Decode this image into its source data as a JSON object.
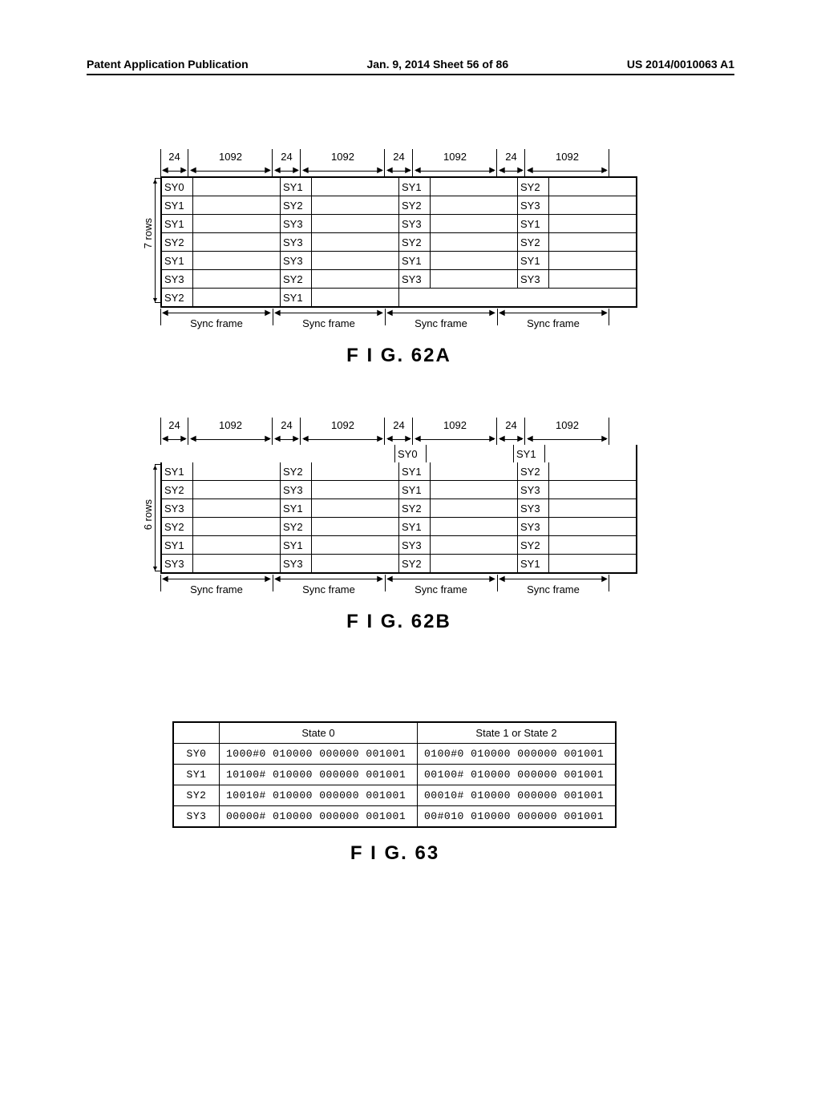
{
  "header": {
    "left": "Patent Application Publication",
    "center": "Jan. 9, 2014  Sheet 56 of 86",
    "right": "US 2014/0010063 A1"
  },
  "dims": {
    "narrow": "24",
    "wide": "1092"
  },
  "figA": {
    "rowsLabel": "7 rows",
    "caption": "F I G. 62A",
    "syncLabel": "Sync frame",
    "cells": [
      [
        "SY0",
        "",
        "SY1",
        "",
        "SY1",
        "",
        "SY2",
        ""
      ],
      [
        "SY1",
        "",
        "SY2",
        "",
        "SY2",
        "",
        "SY3",
        ""
      ],
      [
        "SY1",
        "",
        "SY3",
        "",
        "SY3",
        "",
        "SY1",
        ""
      ],
      [
        "SY2",
        "",
        "SY3",
        "",
        "SY2",
        "",
        "SY2",
        ""
      ],
      [
        "SY1",
        "",
        "SY3",
        "",
        "SY1",
        "",
        "SY1",
        ""
      ],
      [
        "SY3",
        "",
        "SY2",
        "",
        "SY3",
        "",
        "SY3",
        ""
      ],
      [
        "SY2",
        "",
        "SY1",
        "",
        "",
        "",
        "",
        ""
      ]
    ],
    "emptyCells": [
      [
        6,
        4
      ],
      [
        6,
        5
      ],
      [
        6,
        6
      ],
      [
        6,
        7
      ]
    ]
  },
  "figB": {
    "rowsLabel": "6 rows",
    "caption": "F I G. 62B",
    "syncLabel": "Sync frame",
    "preRow": [
      "",
      "",
      "",
      "",
      "SY0",
      "",
      "SY1",
      ""
    ],
    "cells": [
      [
        "SY1",
        "",
        "SY2",
        "",
        "SY1",
        "",
        "SY2",
        ""
      ],
      [
        "SY2",
        "",
        "SY3",
        "",
        "SY1",
        "",
        "SY3",
        ""
      ],
      [
        "SY3",
        "",
        "SY1",
        "",
        "SY2",
        "",
        "SY3",
        ""
      ],
      [
        "SY2",
        "",
        "SY2",
        "",
        "SY1",
        "",
        "SY3",
        ""
      ],
      [
        "SY1",
        "",
        "SY1",
        "",
        "SY3",
        "",
        "SY2",
        ""
      ],
      [
        "SY3",
        "",
        "SY3",
        "",
        "SY2",
        "",
        "SY1",
        ""
      ]
    ]
  },
  "figC": {
    "caption": "F I G. 63",
    "headers": [
      "",
      "State 0",
      "State 1 or State 2"
    ],
    "rows": [
      [
        "SY0",
        "1000#0 010000 000000 001001",
        "0100#0 010000 000000 001001"
      ],
      [
        "SY1",
        "10100# 010000 000000 001001",
        "00100# 010000 000000 001001"
      ],
      [
        "SY2",
        "10010# 010000 000000 001001",
        "00010# 010000 000000 001001"
      ],
      [
        "SY3",
        "00000# 010000 000000 001001",
        "00#010 010000 000000 001001"
      ]
    ]
  }
}
